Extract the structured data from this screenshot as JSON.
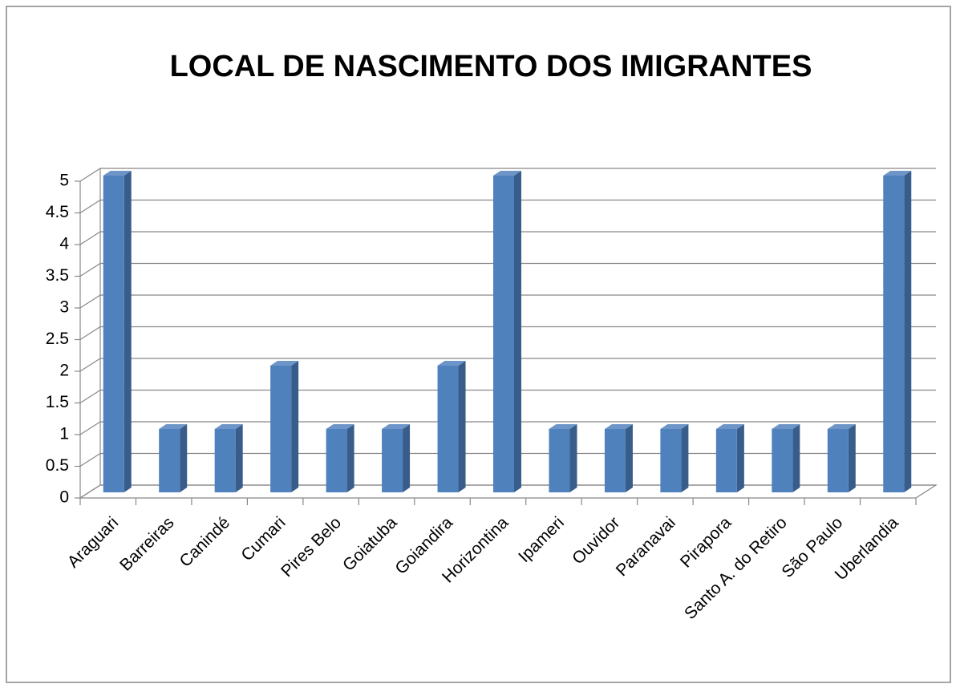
{
  "chart_data": {
    "type": "bar3d",
    "title": "LOCAL DE NASCIMENTO DOS IMIGRANTES",
    "categories": [
      "Araguari",
      "Barreiras",
      "Canindé",
      "Cumari",
      "Pires Belo",
      "Goiatuba",
      "Goiandira",
      "Horizontina",
      "Ipameri",
      "Ouvidor",
      "Paranavai",
      "Pirapora",
      "Santo A. do Retiro",
      "São Paulo",
      "Uberlandia"
    ],
    "values": [
      5,
      1,
      1,
      2,
      1,
      1,
      2,
      5,
      1,
      1,
      1,
      1,
      1,
      1,
      5
    ],
    "color": "#4f81bd",
    "ylim": [
      0,
      5
    ],
    "yticks": [
      0,
      0.5,
      1,
      1.5,
      2,
      2.5,
      3,
      3.5,
      4,
      4.5,
      5
    ],
    "grid": true
  }
}
